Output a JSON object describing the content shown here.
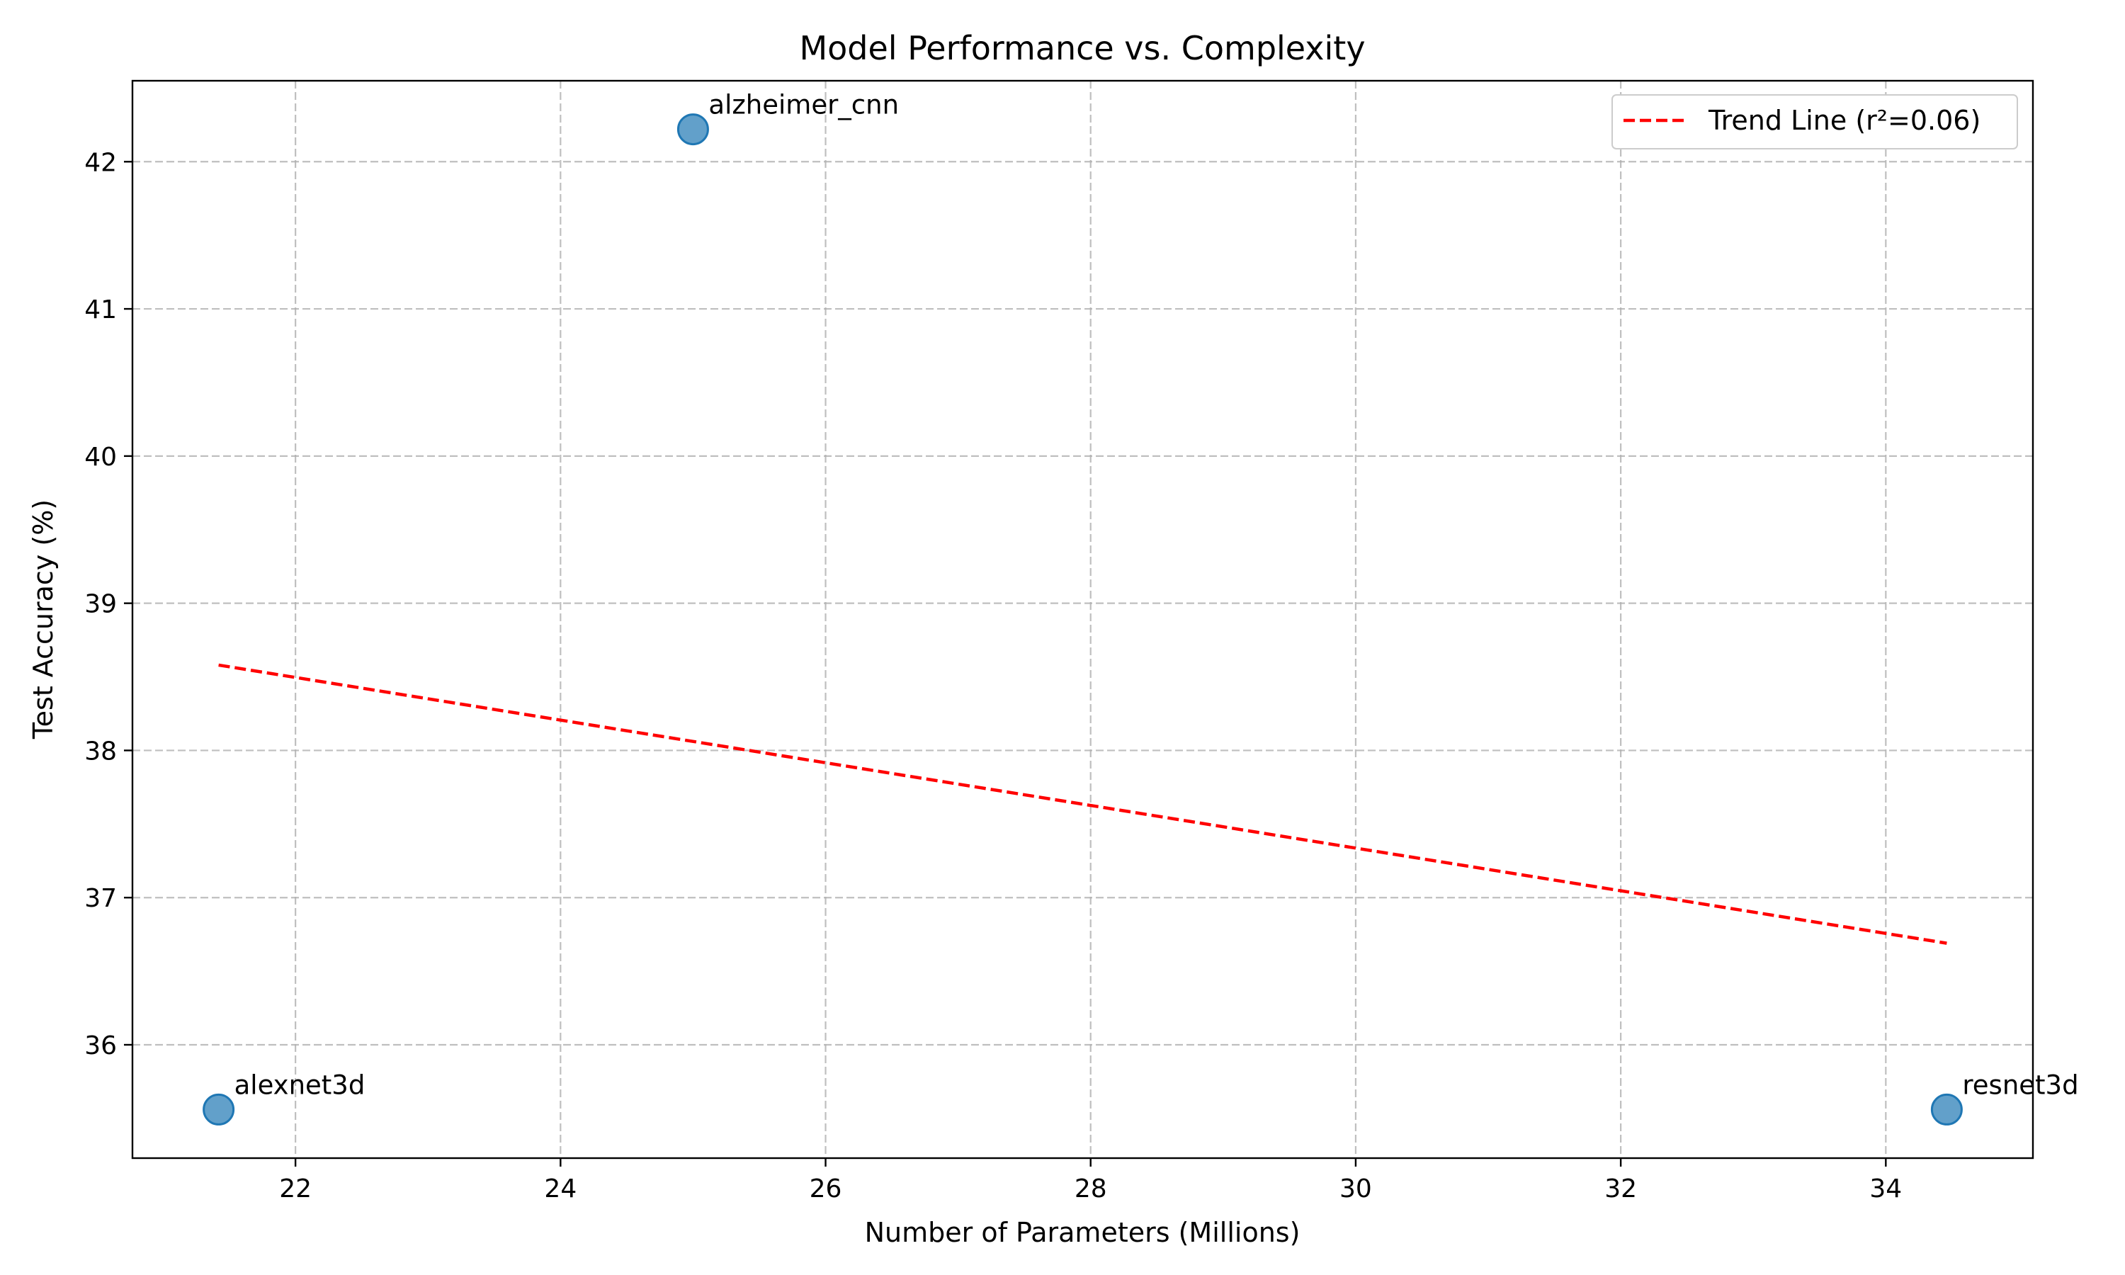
{
  "chart_data": {
    "type": "scatter",
    "title": "Model Performance vs. Complexity",
    "xlabel": "Number of Parameters (Millions)",
    "ylabel": "Test Accuracy (%)",
    "xlim": [
      20.77,
      35.11
    ],
    "ylim": [
      35.23,
      42.55
    ],
    "xticks": [
      22,
      24,
      26,
      28,
      30,
      32,
      34
    ],
    "yticks": [
      36,
      37,
      38,
      39,
      40,
      41,
      42
    ],
    "grid": true,
    "legend_position": "top-right",
    "points": [
      {
        "label": "alexnet3d",
        "x": 21.42,
        "y": 35.56
      },
      {
        "label": "alzheimer_cnn",
        "x": 25.0,
        "y": 42.22
      },
      {
        "label": "resnet3d",
        "x": 34.46,
        "y": 35.56
      }
    ],
    "trend_line": {
      "name": "Trend Line (r²=0.06)",
      "x": [
        21.42,
        34.46
      ],
      "y": [
        38.58,
        36.69
      ],
      "color": "#ff0000"
    },
    "point_color": "#1f77b4"
  }
}
